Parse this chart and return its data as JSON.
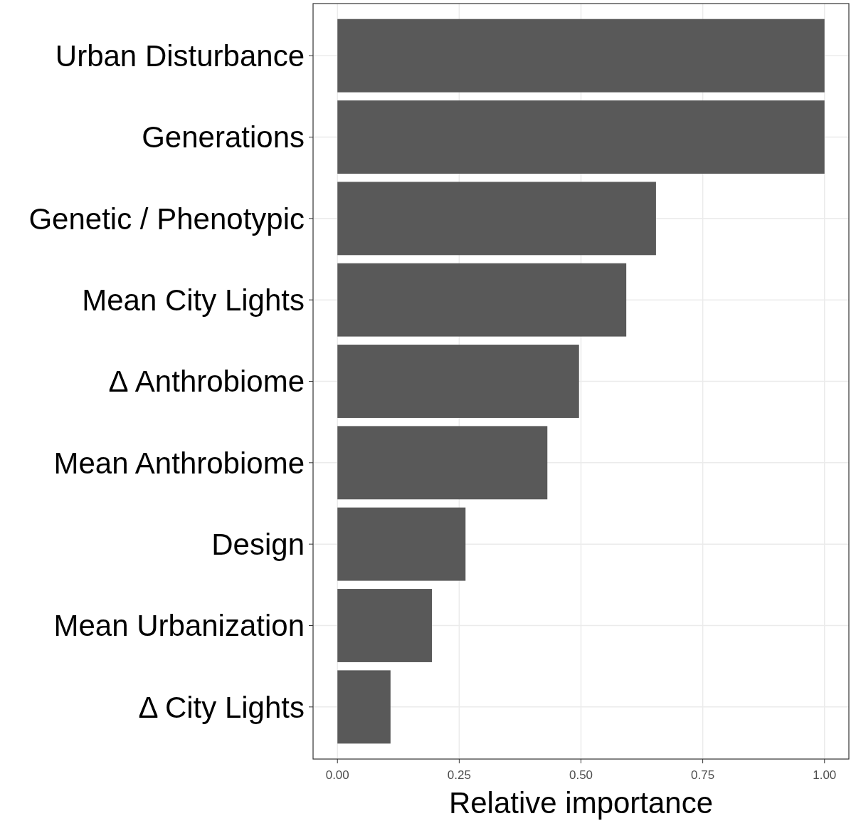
{
  "chart_data": {
    "type": "bar",
    "orientation": "horizontal",
    "xlabel": "Relative importance",
    "categories": [
      "Urban Disturbance",
      "Generations",
      "Genetic / Phenotypic",
      "Mean City Lights",
      "Δ Anthrobiome",
      "Mean Anthrobiome",
      "Design",
      "Mean Urbanization",
      "Δ City Lights"
    ],
    "values": [
      1.0,
      1.0,
      0.654,
      0.593,
      0.496,
      0.431,
      0.263,
      0.194,
      0.109
    ],
    "color": "#595959",
    "xlim": [
      -0.05,
      1.05
    ],
    "xticks": [
      {
        "value": 0,
        "label": "0.00"
      },
      {
        "value": 0.25,
        "label": "0.25"
      },
      {
        "value": 0.5,
        "label": "0.50"
      },
      {
        "value": 0.75,
        "label": "0.75"
      },
      {
        "value": 1,
        "label": "1.00"
      }
    ],
    "grid": true
  }
}
